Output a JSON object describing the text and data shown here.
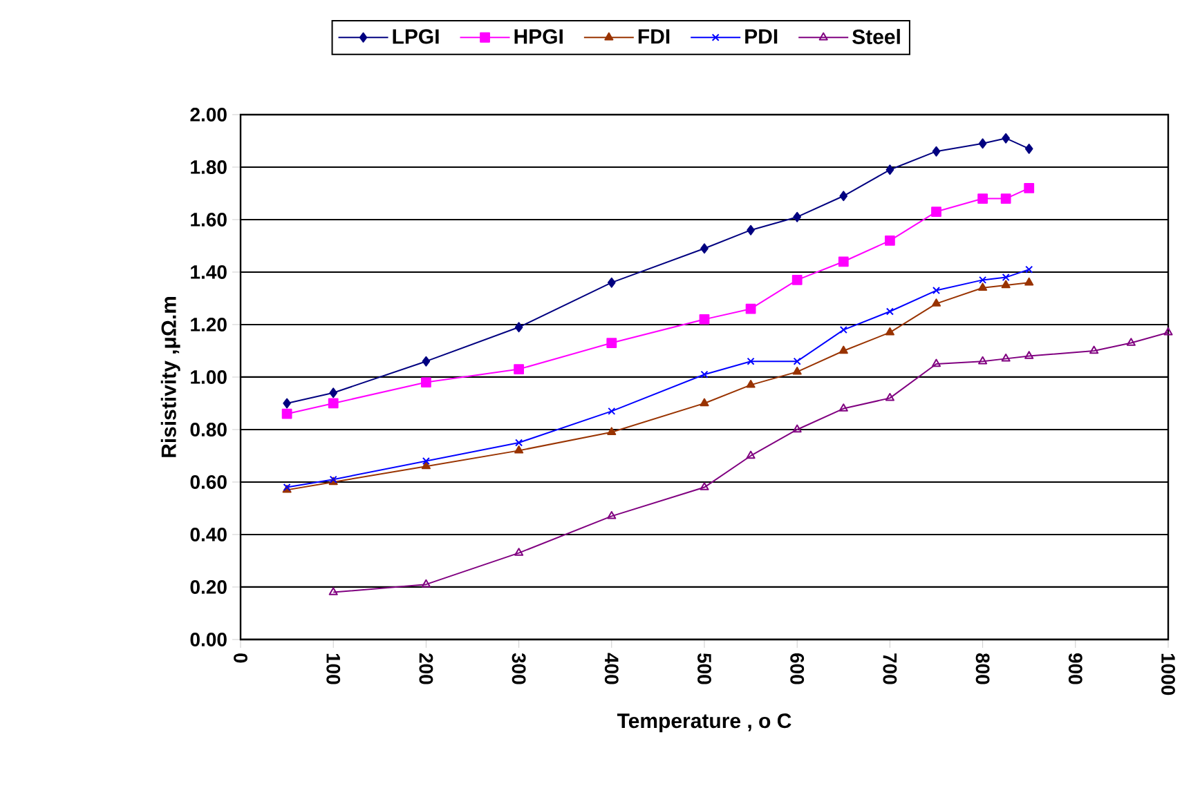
{
  "chart_data": {
    "type": "line",
    "xlabel": "Temperature , o C",
    "ylabel": "Risistivity ,μΩ.m",
    "xlim": [
      0,
      1000
    ],
    "xticks": [
      0,
      100,
      200,
      300,
      400,
      500,
      600,
      700,
      800,
      900,
      1000
    ],
    "ylim": [
      0,
      2
    ],
    "yticks": [
      {
        "value": 0,
        "label": "0.00"
      },
      {
        "value": 0.2,
        "label": "0.20"
      },
      {
        "value": 0.4,
        "label": "0.40"
      },
      {
        "value": 0.6,
        "label": "0.60"
      },
      {
        "value": 0.8,
        "label": "0.80"
      },
      {
        "value": 1.0,
        "label": "1.00"
      },
      {
        "value": 1.2,
        "label": "1.20"
      },
      {
        "value": 1.4,
        "label": "1.40"
      },
      {
        "value": 1.6,
        "label": "1.60"
      },
      {
        "value": 1.8,
        "label": "1.80"
      },
      {
        "value": 2.0,
        "label": "2.00"
      }
    ],
    "grid": "y",
    "legend": "top",
    "line_style": "solid",
    "series": [
      {
        "name": "LPGI",
        "color": "#000080",
        "marker": "diamond",
        "x": [
          50,
          100,
          200,
          300,
          400,
          500,
          550,
          600,
          650,
          700,
          750,
          800,
          825,
          850
        ],
        "values": [
          0.9,
          0.94,
          1.06,
          1.19,
          1.36,
          1.49,
          1.56,
          1.61,
          1.69,
          1.79,
          1.86,
          1.89,
          1.91,
          1.87
        ]
      },
      {
        "name": "HPGI",
        "color": "#ff00ff",
        "marker": "square",
        "x": [
          50,
          100,
          200,
          300,
          400,
          500,
          550,
          600,
          650,
          700,
          750,
          800,
          825,
          850
        ],
        "values": [
          0.86,
          0.9,
          0.98,
          1.03,
          1.13,
          1.22,
          1.26,
          1.37,
          1.44,
          1.52,
          1.63,
          1.68,
          1.68,
          1.72
        ]
      },
      {
        "name": "FDI",
        "color": "#993300",
        "marker": "triangle",
        "x": [
          50,
          100,
          200,
          300,
          400,
          500,
          550,
          600,
          650,
          700,
          750,
          800,
          825,
          850
        ],
        "values": [
          0.57,
          0.6,
          0.66,
          0.72,
          0.79,
          0.9,
          0.97,
          1.02,
          1.1,
          1.17,
          1.28,
          1.34,
          1.35,
          1.36
        ]
      },
      {
        "name": "PDI",
        "color": "#0000ff",
        "marker": "cross",
        "x": [
          50,
          100,
          200,
          300,
          400,
          500,
          550,
          600,
          650,
          700,
          750,
          800,
          825,
          850
        ],
        "values": [
          0.58,
          0.61,
          0.68,
          0.75,
          0.87,
          1.01,
          1.06,
          1.06,
          1.18,
          1.25,
          1.33,
          1.37,
          1.38,
          1.41
        ]
      },
      {
        "name": "Steel",
        "color": "#800080",
        "marker": "triangle",
        "x": [
          100,
          200,
          300,
          400,
          500,
          550,
          600,
          650,
          700,
          750,
          800,
          825,
          850,
          920,
          960,
          1000
        ],
        "values": [
          0.18,
          0.21,
          0.33,
          0.47,
          0.58,
          0.7,
          0.8,
          0.88,
          0.92,
          1.05,
          1.06,
          1.07,
          1.08,
          1.1,
          1.13,
          1.17
        ]
      }
    ]
  }
}
